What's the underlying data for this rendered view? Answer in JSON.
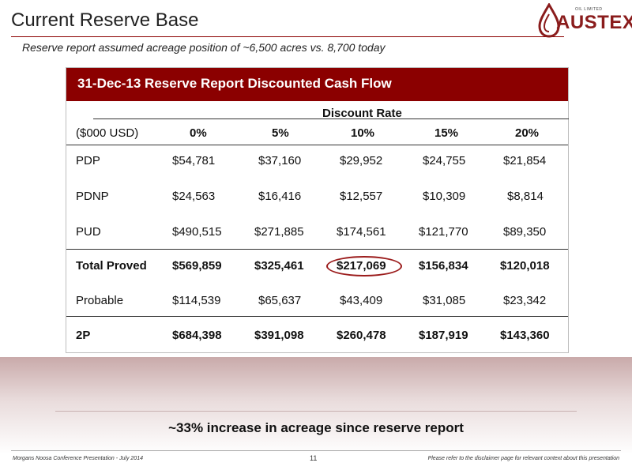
{
  "header": {
    "title": "Current Reserve Base",
    "subtitle": "Reserve report assumed acreage position of ~6,500 acres vs. 8,700 today"
  },
  "logo": {
    "name": "AUSTEX",
    "small_text": "OIL LIMITED"
  },
  "table": {
    "title": "31-Dec-13 Reserve Report Discounted Cash Flow",
    "group_header": "Discount Rate",
    "unit_label": "($000 USD)",
    "columns": [
      "0%",
      "5%",
      "10%",
      "15%",
      "20%"
    ],
    "rows": [
      {
        "label": "PDP",
        "values": [
          "$54,781",
          "$37,160",
          "$29,952",
          "$24,755",
          "$21,854"
        ]
      },
      {
        "label": "PDNP",
        "values": [
          "$24,563",
          "$16,416",
          "$12,557",
          "$10,309",
          "$8,814"
        ]
      },
      {
        "label": "PUD",
        "values": [
          "$490,515",
          "$271,885",
          "$174,561",
          "$121,770",
          "$89,350"
        ]
      },
      {
        "label": "Total Proved",
        "values": [
          "$569,859",
          "$325,461",
          "$217,069",
          "$156,834",
          "$120,018"
        ]
      },
      {
        "label": "Probable",
        "values": [
          "$114,539",
          "$65,637",
          "$43,409",
          "$31,085",
          "$23,342"
        ]
      },
      {
        "label": "2P",
        "values": [
          "$684,398",
          "$391,098",
          "$260,478",
          "$187,919",
          "$143,360"
        ]
      }
    ]
  },
  "callout": "~33% increase in acreage since reserve report",
  "footer": {
    "left": "Morgans Noosa Conference Presentation - July 2014",
    "page_number": "11",
    "right": "Please refer to the disclaimer page for relevant context about this presentation"
  },
  "colors": {
    "accent": "#8b0000",
    "highlight_ring": "#9b1c1c"
  }
}
